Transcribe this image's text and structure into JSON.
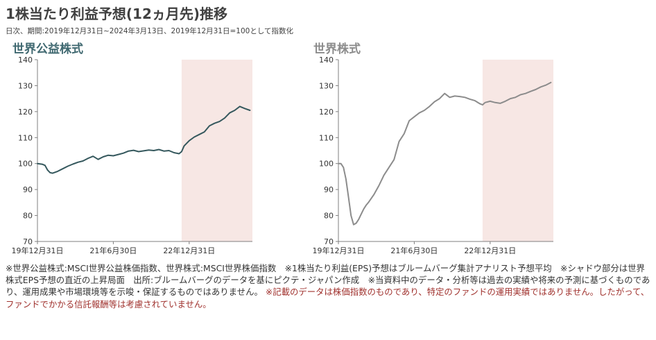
{
  "header": {
    "title": "1株当たり利益予想(12ヵ月先)推移",
    "subtitle": "日次、期間:2019年12月31日~2024年3月13日、2019年12月31日=100として指数化"
  },
  "chart_data": [
    {
      "type": "line",
      "title": "世界公益株式",
      "title_color": "#3f6870",
      "line_color": "#35585d",
      "shade_color": "#f7e7e4",
      "ylim": [
        70,
        140
      ],
      "y_ticks": [
        "140",
        "130",
        "120",
        "110",
        "100",
        "90",
        "80",
        "70"
      ],
      "x_ticks": [
        "19年12月31日",
        "21年6月30日",
        "22年12月31日"
      ],
      "shaded_start_year": 2022.85,
      "series": [
        {
          "x": [
            2020.0,
            2020.1,
            2020.15,
            2020.2,
            2020.25,
            2020.3,
            2020.4,
            2020.5,
            2020.6,
            2020.7,
            2020.8,
            2020.9,
            2021.0,
            2021.1,
            2021.2,
            2021.3,
            2021.4,
            2021.5,
            2021.6,
            2021.7,
            2021.8,
            2021.9,
            2022.0,
            2022.1,
            2022.2,
            2022.3,
            2022.4,
            2022.5,
            2022.6,
            2022.7,
            2022.8,
            2022.85,
            2022.9,
            2023.0,
            2023.1,
            2023.2,
            2023.3,
            2023.4,
            2023.5,
            2023.6,
            2023.7,
            2023.8,
            2023.9,
            2024.0,
            2024.1,
            2024.2
          ],
          "values": [
            100.0,
            99.7,
            99.3,
            97.5,
            96.5,
            96.3,
            97.0,
            98.0,
            99.0,
            99.8,
            100.5,
            101.0,
            102.0,
            102.8,
            101.6,
            102.6,
            103.2,
            103.0,
            103.5,
            104.0,
            104.8,
            105.1,
            104.6,
            104.9,
            105.2,
            105.0,
            105.4,
            104.8,
            105.0,
            104.2,
            103.8,
            104.6,
            106.8,
            108.8,
            110.2,
            111.2,
            112.2,
            114.5,
            115.5,
            116.2,
            117.5,
            119.5,
            120.5,
            122.0,
            121.2,
            120.5
          ]
        }
      ]
    },
    {
      "type": "line",
      "title": "世界株式",
      "title_color": "#8c8c8c",
      "line_color": "#8c8c8c",
      "shade_color": "#f7e7e4",
      "ylim": [
        70,
        140
      ],
      "y_ticks": [
        "140",
        "130",
        "120",
        "110",
        "100",
        "90",
        "80",
        "70"
      ],
      "x_ticks": [
        "19年12月31日",
        "21年6月30日",
        "22年12月31日"
      ],
      "shaded_start_year": 2022.85,
      "series": [
        {
          "x": [
            2020.0,
            2020.05,
            2020.1,
            2020.15,
            2020.2,
            2020.25,
            2020.3,
            2020.35,
            2020.4,
            2020.45,
            2020.5,
            2020.55,
            2020.6,
            2020.7,
            2020.8,
            2020.9,
            2021.0,
            2021.1,
            2021.2,
            2021.3,
            2021.4,
            2021.5,
            2021.6,
            2021.7,
            2021.8,
            2021.9,
            2022.0,
            2022.1,
            2022.2,
            2022.3,
            2022.4,
            2022.5,
            2022.6,
            2022.7,
            2022.8,
            2022.85,
            2022.9,
            2023.0,
            2023.1,
            2023.2,
            2023.3,
            2023.4,
            2023.5,
            2023.6,
            2023.7,
            2023.8,
            2023.9,
            2024.0,
            2024.1,
            2024.2
          ],
          "values": [
            100.0,
            100.0,
            98.5,
            94.0,
            87.0,
            80.0,
            76.5,
            77.0,
            78.5,
            80.5,
            82.5,
            84.0,
            85.2,
            88.0,
            91.5,
            95.5,
            98.5,
            101.5,
            108.5,
            111.5,
            116.5,
            118.0,
            119.5,
            120.5,
            122.0,
            123.8,
            125.0,
            127.0,
            125.5,
            126.0,
            125.8,
            125.5,
            124.8,
            124.2,
            123.0,
            122.6,
            123.5,
            124.0,
            123.5,
            123.2,
            124.0,
            125.0,
            125.5,
            126.5,
            127.0,
            127.8,
            128.5,
            129.5,
            130.2,
            131.2
          ]
        }
      ]
    }
  ],
  "notes": {
    "text": "※世界公益株式:MSCI世界公益株価指数、世界株式:MSCI世界株価指数　※1株当たり利益(EPS)予想はブルームバーグ集計アナリスト予想平均　※シャドウ部分は世界株式EPS予想の直近の上昇局面　出所:ブルームバーグのデータを基にピクテ・ジャパン作成　※当資料中のデータ・分析等は過去の実績や将来の予測に基づくものであり、運用成果や市場環境等を示唆・保証するものではありません。",
    "disclaimer": "※記載のデータは株価指数のものであり、特定のファンドの運用実績ではありません。したがって、ファンドでかかる信託報酬等は考慮されていません。"
  }
}
